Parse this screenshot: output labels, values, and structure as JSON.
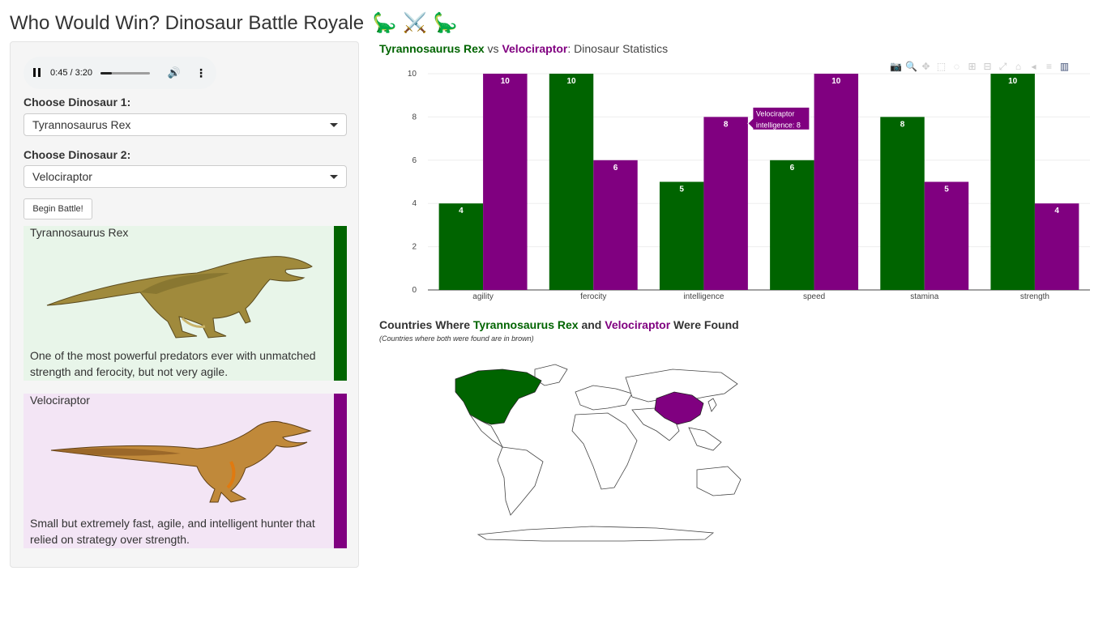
{
  "page": {
    "title": "Who Would Win? Dinosaur Battle Royale",
    "title_emoji": "🦕 ⚔️ 🦕"
  },
  "audio": {
    "time": "0:45 / 3:20",
    "progress": 0.225,
    "pause_icon": "pause-icon",
    "volume_icon": "volume-icon",
    "more_icon": "more-vert-icon"
  },
  "controls": {
    "dino1_label": "Choose Dinosaur 1:",
    "dino1_value": "Tyrannosaurus Rex",
    "dino2_label": "Choose Dinosaur 2:",
    "dino2_value": "Velociraptor",
    "battle_button": "Begin Battle!"
  },
  "cards": [
    {
      "name": "Tyrannosaurus Rex",
      "description": "One of the most powerful predators ever with unmatched strength and ferocity, but not very agile.",
      "color": "#006400",
      "bg": "#e8f5e9"
    },
    {
      "name": "Velociraptor",
      "description": "Small but extremely fast, agile, and intelligent hunter that relied on strategy over strength.",
      "color": "#800080",
      "bg": "#f3e5f5"
    }
  ],
  "chart": {
    "title_d1": "Tyrannosaurus Rex",
    "title_vs": " vs ",
    "title_d2": "Velociraptor",
    "title_rest": ": Dinosaur Statistics",
    "hover": {
      "line1": "Velociraptor",
      "line2": "intelligence: 8"
    }
  },
  "chart_data": {
    "type": "bar",
    "title": "Tyrannosaurus Rex vs Velociraptor: Dinosaur Statistics",
    "categories": [
      "agility",
      "ferocity",
      "intelligence",
      "speed",
      "stamina",
      "strength"
    ],
    "series": [
      {
        "name": "Tyrannosaurus Rex",
        "values": [
          4,
          10,
          5,
          6,
          8,
          10
        ],
        "color": "#006400"
      },
      {
        "name": "Velociraptor",
        "values": [
          10,
          6,
          8,
          10,
          5,
          4
        ],
        "color": "#800080"
      }
    ],
    "ylim": [
      0,
      10
    ],
    "yticks": [
      0,
      2,
      4,
      6,
      8,
      10
    ],
    "grid": true,
    "legend": "none"
  },
  "map": {
    "title_pre": "Countries Where ",
    "title_d1": "Tyrannosaurus Rex",
    "title_and": " and ",
    "title_d2": "Velociraptor",
    "title_post": " Were Found",
    "subtitle": "(Countries where both were found are in brown)",
    "colors": {
      "dino1": "#006400",
      "dino2": "#800080",
      "both": "#8b4513"
    }
  }
}
